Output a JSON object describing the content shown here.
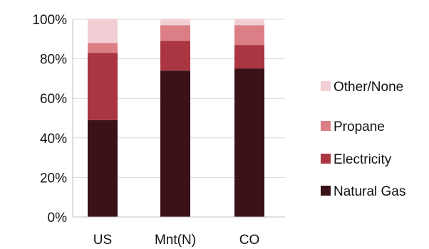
{
  "chart_data": {
    "type": "bar",
    "stacked": true,
    "categories": [
      "US",
      "Mnt(N)",
      "CO"
    ],
    "series": [
      {
        "name": "Natural Gas",
        "color": "#3B1218",
        "values": [
          49,
          74,
          75
        ]
      },
      {
        "name": "Electricity",
        "color": "#A93640",
        "values": [
          34,
          15,
          12
        ]
      },
      {
        "name": "Propane",
        "color": "#DB7E86",
        "values": [
          5,
          8,
          10
        ]
      },
      {
        "name": "Other/None",
        "color": "#F2CFD4",
        "values": [
          12,
          3,
          3
        ]
      }
    ],
    "y_ticks": [
      "0%",
      "20%",
      "40%",
      "60%",
      "80%",
      "100%"
    ],
    "ylim": [
      0,
      100
    ],
    "grid": true,
    "legend_position": "right",
    "legend_order": [
      "Other/None",
      "Propane",
      "Electricity",
      "Natural Gas"
    ]
  }
}
